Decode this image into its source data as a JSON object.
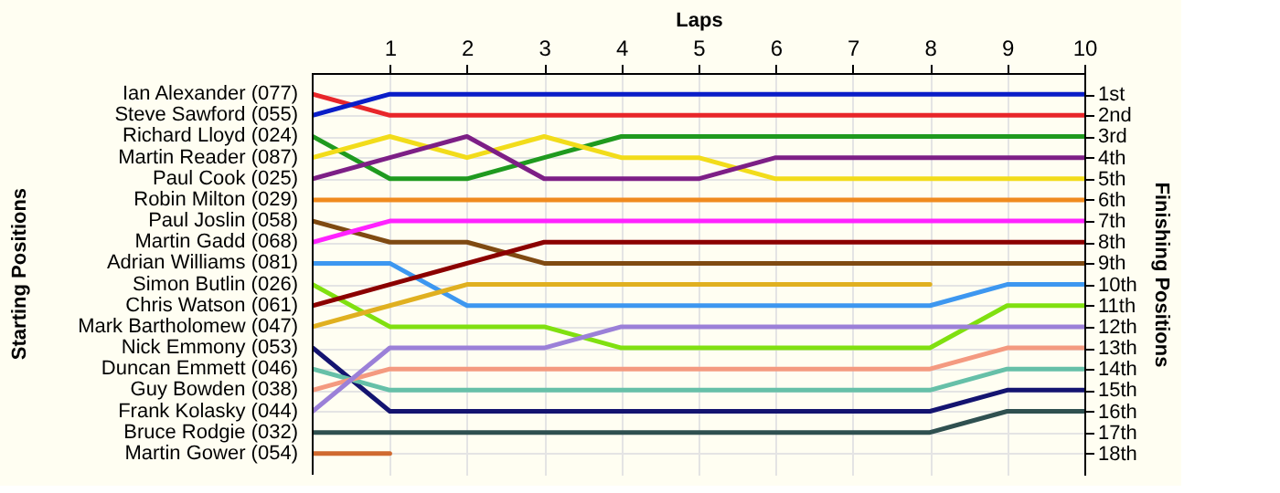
{
  "chart_data": {
    "type": "line",
    "xlabel": "Laps",
    "ylabel": "Finishing Positions",
    "annotations": [
      "Starting Positions"
    ],
    "x": [
      0,
      1,
      2,
      3,
      4,
      5,
      6,
      7,
      8,
      9,
      10
    ],
    "xlim": [
      0,
      10
    ],
    "xticks": [
      1,
      2,
      3,
      4,
      5,
      6,
      7,
      8,
      9,
      10
    ],
    "ylim": [
      19,
      0
    ],
    "yticks": [
      {
        "value": 1,
        "label": "1st"
      },
      {
        "value": 2,
        "label": "2nd"
      },
      {
        "value": 3,
        "label": "3rd"
      },
      {
        "value": 4,
        "label": "4th"
      },
      {
        "value": 5,
        "label": "5th"
      },
      {
        "value": 6,
        "label": "6th"
      },
      {
        "value": 7,
        "label": "7th"
      },
      {
        "value": 8,
        "label": "8th"
      },
      {
        "value": 9,
        "label": "9th"
      },
      {
        "value": 10,
        "label": "10th"
      },
      {
        "value": 11,
        "label": "11th"
      },
      {
        "value": 12,
        "label": "12th"
      },
      {
        "value": 13,
        "label": "13th"
      },
      {
        "value": 14,
        "label": "14th"
      },
      {
        "value": 15,
        "label": "15th"
      },
      {
        "value": 16,
        "label": "16th"
      },
      {
        "value": 17,
        "label": "17th"
      },
      {
        "value": 18,
        "label": "18th"
      }
    ],
    "grid": true,
    "line_style": "solid",
    "marker": "none",
    "legend": false,
    "series": [
      {
        "name": "Ian Alexander (077)",
        "color": "#e8262a",
        "values": [
          1,
          2,
          2,
          2,
          2,
          2,
          2,
          2,
          2,
          2,
          2
        ]
      },
      {
        "name": "Steve Sawford (055)",
        "color": "#0a1ec8",
        "values": [
          2,
          1,
          1,
          1,
          1,
          1,
          1,
          1,
          1,
          1,
          1
        ]
      },
      {
        "name": "Richard Lloyd (024)",
        "color": "#1f9a1f",
        "values": [
          3,
          5,
          5,
          4,
          3,
          3,
          3,
          3,
          3,
          3,
          3
        ]
      },
      {
        "name": "Martin Reader (087)",
        "color": "#f2dc1a",
        "values": [
          4,
          3,
          4,
          3,
          4,
          4,
          5,
          5,
          5,
          5,
          5
        ]
      },
      {
        "name": "Paul Cook (025)",
        "color": "#7d1f86",
        "values": [
          5,
          4,
          3,
          5,
          5,
          5,
          4,
          4,
          4,
          4,
          4
        ]
      },
      {
        "name": "Robin Milton (029)",
        "color": "#f08a1e",
        "values": [
          6,
          6,
          6,
          6,
          6,
          6,
          6,
          6,
          6,
          6,
          6
        ]
      },
      {
        "name": "Paul Joslin (058)",
        "color": "#7f4a12",
        "values": [
          7,
          8,
          8,
          9,
          9,
          9,
          9,
          9,
          9,
          9,
          9
        ]
      },
      {
        "name": "Martin Gadd (068)",
        "color": "#ff22ff",
        "values": [
          8,
          7,
          7,
          7,
          7,
          7,
          7,
          7,
          7,
          7,
          7
        ]
      },
      {
        "name": "Adrian Williams (081)",
        "color": "#3d97f0",
        "values": [
          9,
          9,
          11,
          11,
          11,
          11,
          11,
          11,
          11,
          10,
          10
        ]
      },
      {
        "name": "Simon Butlin (026)",
        "color": "#80e010",
        "values": [
          10,
          12,
          12,
          12,
          13,
          13,
          13,
          13,
          13,
          11,
          11
        ]
      },
      {
        "name": "Chris Watson (061)",
        "color": "#8b0000",
        "values": [
          11,
          10,
          9,
          8,
          8,
          8,
          8,
          8,
          8,
          8,
          8
        ]
      },
      {
        "name": "Mark Bartholomew (047)",
        "color": "#e0b020",
        "values": [
          12,
          11,
          10,
          10,
          10,
          10,
          10,
          10,
          10,
          null,
          null
        ]
      },
      {
        "name": "Nick Emmony (053)",
        "color": "#141470",
        "values": [
          13,
          16,
          16,
          16,
          16,
          16,
          16,
          16,
          16,
          15,
          15
        ]
      },
      {
        "name": "Duncan Emmett (046)",
        "color": "#66c0a8",
        "values": [
          14,
          15,
          15,
          15,
          15,
          15,
          15,
          15,
          15,
          14,
          14
        ]
      },
      {
        "name": "Guy Bowden (038)",
        "color": "#f49a80",
        "values": [
          15,
          14,
          14,
          14,
          14,
          14,
          14,
          14,
          14,
          13,
          13
        ]
      },
      {
        "name": "Frank Kolasky (044)",
        "color": "#9b80d8",
        "values": [
          16,
          13,
          13,
          13,
          12,
          12,
          12,
          12,
          12,
          12,
          12
        ]
      },
      {
        "name": "Bruce Rodgie (032)",
        "color": "#2f5050",
        "values": [
          17,
          17,
          17,
          17,
          17,
          17,
          17,
          17,
          17,
          16,
          16
        ]
      },
      {
        "name": "Martin Gower (054)",
        "color": "#d06a30",
        "values": [
          18,
          18,
          null,
          null,
          null,
          null,
          null,
          null,
          null,
          null,
          null
        ]
      }
    ]
  }
}
